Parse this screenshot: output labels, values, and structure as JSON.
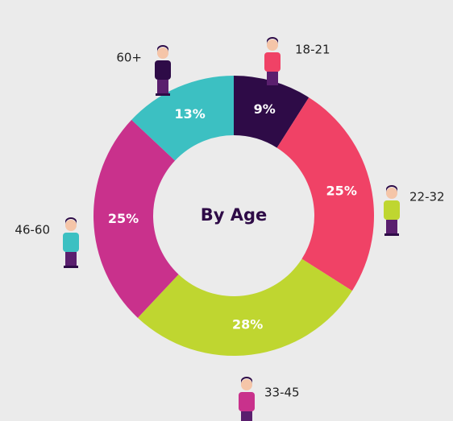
{
  "chart_data": {
    "type": "pie",
    "title": "By Age",
    "categories": [
      "18-21",
      "22-32",
      "33-45",
      "46-60",
      "60+"
    ],
    "values": [
      9,
      25,
      28,
      25,
      13
    ],
    "value_labels": [
      "9%",
      "25%",
      "28%",
      "25%",
      "13%"
    ],
    "colors": [
      "#2e0b47",
      "#f04266",
      "#bfd630",
      "#c9318c",
      "#3cc0c2"
    ]
  }
}
